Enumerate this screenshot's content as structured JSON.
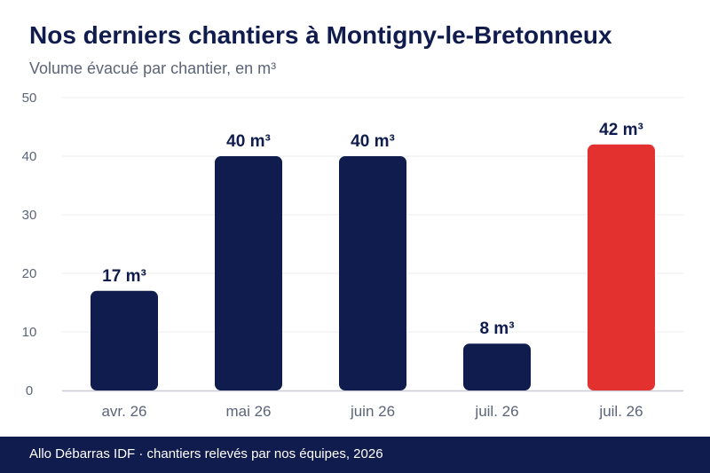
{
  "title": "Nos derniers chantiers à Montigny-le-Bretonneux",
  "subtitle": "Volume évacué par chantier, en m³",
  "footer": "Allo Débarras IDF · chantiers relevés par nos équipes, 2026",
  "colors": {
    "primary": "#0f1c4d",
    "highlight": "#e3312f",
    "grid": "#e9ecf1",
    "axis": "#c9ccd6",
    "tick_text": "#5b6478"
  },
  "chart_data": {
    "type": "bar",
    "categories": [
      "avr. 26",
      "mai 26",
      "juin 26",
      "juil. 26",
      "juil. 26"
    ],
    "values": [
      17,
      40,
      40,
      8,
      42
    ],
    "data_labels": [
      "17 m³",
      "40 m³",
      "40 m³",
      "8 m³",
      "42 m³"
    ],
    "highlight_index": 4,
    "ylim": [
      0,
      50
    ],
    "yticks": [
      0,
      10,
      20,
      30,
      40,
      50
    ],
    "grid": true,
    "xlabel": "",
    "ylabel": ""
  }
}
